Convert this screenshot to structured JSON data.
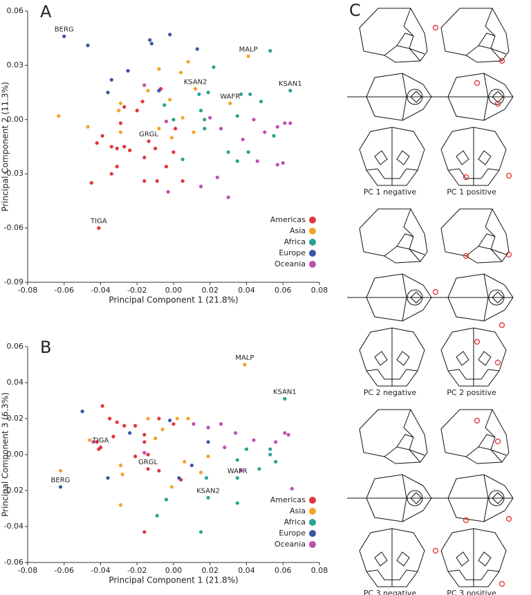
{
  "chart_data": [
    {
      "type": "scatter",
      "label": "A",
      "xlabel": "Principal Component 1 (21.8%)",
      "ylabel": "Principal Component 2 (11.3%)",
      "xlim": [
        -0.08,
        0.08
      ],
      "ylim": [
        -0.09,
        0.06
      ],
      "xticks": [
        -0.08,
        -0.06,
        -0.04,
        -0.02,
        {
          "value": 0,
          "label": "0.00"
        },
        0.02,
        0.04,
        0.06,
        0.08
      ],
      "yticks": [
        -0.09,
        -0.06,
        -0.03,
        {
          "value": 0,
          "label": "0.00"
        },
        0.03,
        0.06
      ],
      "legend": "lower right",
      "series": [
        {
          "name": "Americas",
          "color": "#e0363c",
          "x": [
            -0.041,
            -0.0136,
            -0.008,
            -0.007,
            -0.017,
            -0.027,
            -0.02,
            -0.029,
            -0.039,
            -0.042,
            -0.034,
            -0.031,
            -0.027,
            -0.024,
            -0.016,
            -0.01,
            -0.004,
            0.0,
            -0.034,
            -0.045,
            -0.016,
            -0.009,
            0.005,
            0.001,
            -0.031
          ],
          "y": [
            -0.06,
            -0.012,
            0.016,
            0.017,
            0.01,
            0.007,
            0.005,
            -0.002,
            -0.009,
            -0.013,
            -0.015,
            -0.016,
            -0.015,
            -0.017,
            -0.021,
            -0.016,
            -0.026,
            -0.018,
            -0.03,
            -0.035,
            -0.034,
            -0.034,
            -0.034,
            -0.005,
            -0.026
          ]
        },
        {
          "name": "Asia",
          "color": "#f5a227",
          "x": [
            -0.063,
            -0.047,
            -0.029,
            -0.03,
            -0.029,
            -0.014,
            -0.008,
            0.004,
            0.008,
            0.012,
            0.041,
            0.031,
            0.005,
            -0.001,
            -0.008,
            0.011,
            -0.002
          ],
          "y": [
            0.002,
            -0.004,
            0.009,
            0.005,
            -0.007,
            0.016,
            0.028,
            0.026,
            0.032,
            0.017,
            0.035,
            0.009,
            0.001,
            -0.01,
            -0.005,
            -0.007,
            0.011
          ]
        },
        {
          "name": "Africa",
          "color": "#27a394",
          "x": [
            0.053,
            0.064,
            0.022,
            0.019,
            0.014,
            -0.005,
            0.0,
            0.015,
            0.017,
            0.037,
            0.042,
            0.048,
            0.035,
            0.03,
            0.035,
            0.041,
            0.055,
            0.017,
            0.005
          ],
          "y": [
            0.038,
            0.016,
            0.029,
            0.015,
            0.014,
            0.008,
            0.0,
            0.005,
            -0.005,
            0.014,
            0.014,
            0.01,
            0.002,
            -0.018,
            -0.023,
            -0.018,
            -0.009,
            0.0,
            -0.022
          ]
        },
        {
          "name": "Europe",
          "color": "#3a56a6",
          "x": [
            -0.06,
            -0.047,
            -0.013,
            -0.012,
            -0.002,
            0.013,
            -0.025,
            -0.034,
            -0.036,
            -0.008
          ],
          "y": [
            0.046,
            0.041,
            0.044,
            0.042,
            0.047,
            0.039,
            0.027,
            0.022,
            0.015,
            0.016
          ]
        },
        {
          "name": "Oceania",
          "color": "#c04fae",
          "x": [
            -0.016,
            -0.004,
            0.02,
            0.026,
            0.044,
            0.05,
            0.057,
            0.061,
            0.064,
            0.038,
            0.046,
            0.057,
            0.06,
            0.024,
            0.03,
            -0.003,
            0.015
          ],
          "y": [
            0.019,
            -0.001,
            0.001,
            -0.005,
            0.0,
            -0.007,
            -0.004,
            -0.002,
            -0.002,
            -0.011,
            -0.023,
            -0.025,
            -0.024,
            -0.032,
            -0.043,
            -0.04,
            -0.037
          ]
        }
      ],
      "annotations": [
        {
          "text": "BERG",
          "x": -0.06,
          "y": 0.046
        },
        {
          "text": "MALP",
          "x": 0.041,
          "y": 0.035
        },
        {
          "text": "KSAN2",
          "x": 0.012,
          "y": 0.017
        },
        {
          "text": "KSAN1",
          "x": 0.064,
          "y": 0.016
        },
        {
          "text": "WAFR",
          "x": 0.031,
          "y": 0.009
        },
        {
          "text": "GRGL",
          "x": -0.0136,
          "y": -0.012
        },
        {
          "text": "TIGA",
          "x": -0.041,
          "y": -0.06
        }
      ]
    },
    {
      "type": "scatter",
      "label": "B",
      "xlabel": "Principal Component 1 (21.8%)",
      "ylabel": "Principal Component 3 (6.3%)",
      "xlim": [
        -0.08,
        0.08
      ],
      "ylim": [
        -0.06,
        0.06
      ],
      "xticks": [
        -0.08,
        -0.06,
        -0.04,
        -0.02,
        {
          "value": 0,
          "label": "0.00"
        },
        0.02,
        0.04,
        0.06,
        0.08
      ],
      "yticks": [
        -0.06,
        -0.04,
        -0.02,
        {
          "value": 0,
          "label": "0.00"
        },
        0.02,
        0.04,
        0.06
      ],
      "legend": "lower right",
      "series": [
        {
          "name": "Americas",
          "color": "#e0363c",
          "x": [
            -0.04,
            -0.041,
            -0.014,
            -0.039,
            -0.035,
            -0.031,
            -0.027,
            -0.021,
            -0.016,
            -0.016,
            -0.008,
            -0.014,
            -0.008,
            0.004,
            -0.016,
            -0.042,
            -0.033,
            -0.021,
            0.0
          ],
          "y": [
            0.004,
            0.003,
            -0.008,
            0.027,
            0.02,
            0.018,
            0.016,
            0.016,
            0.011,
            0.007,
            0.02,
            0.0,
            -0.009,
            -0.014,
            -0.043,
            0.007,
            0.01,
            -0.001,
            0.017
          ]
        },
        {
          "name": "Asia",
          "color": "#f5a227",
          "x": [
            -0.062,
            -0.046,
            -0.029,
            -0.029,
            -0.028,
            0.039,
            -0.006,
            -0.01,
            0.002,
            0.008,
            -0.001,
            0.006,
            0.015,
            0.019,
            -0.014
          ],
          "y": [
            -0.009,
            0.008,
            -0.028,
            -0.006,
            -0.011,
            0.05,
            0.014,
            0.009,
            0.02,
            0.02,
            -0.018,
            -0.004,
            -0.01,
            -0.001,
            0.02
          ]
        },
        {
          "name": "Africa",
          "color": "#27a394",
          "x": [
            0.061,
            0.019,
            0.018,
            0.035,
            0.035,
            0.047,
            0.053,
            0.056,
            -0.004,
            -0.009,
            0.015,
            0.053,
            0.035,
            0.04
          ],
          "y": [
            0.031,
            -0.024,
            -0.013,
            -0.013,
            -0.027,
            -0.008,
            0.0,
            -0.004,
            -0.025,
            -0.034,
            -0.043,
            0.003,
            -0.003,
            0.003
          ]
        },
        {
          "name": "Europe",
          "color": "#3a56a6",
          "x": [
            -0.062,
            -0.05,
            -0.024,
            -0.036,
            0.003,
            -0.002,
            0.01,
            0.019
          ],
          "y": [
            -0.018,
            0.024,
            0.012,
            -0.013,
            -0.013,
            0.019,
            -0.006,
            0.007
          ]
        },
        {
          "name": "Oceania",
          "color": "#c04fae",
          "x": [
            -0.044,
            -0.016,
            0.011,
            0.026,
            0.034,
            0.044,
            0.056,
            0.061,
            0.063,
            0.065,
            0.037,
            0.019,
            0.028
          ],
          "y": [
            0.007,
            0.001,
            0.017,
            0.017,
            0.012,
            0.008,
            0.007,
            0.012,
            0.011,
            -0.019,
            -0.009,
            0.015,
            0.004
          ]
        }
      ],
      "annotations": [
        {
          "text": "MALP",
          "x": 0.039,
          "y": 0.05
        },
        {
          "text": "KSAN1",
          "x": 0.061,
          "y": 0.031
        },
        {
          "text": "TIGA",
          "x": -0.04,
          "y": 0.004
        },
        {
          "text": "GRGL",
          "x": -0.014,
          "y": -0.008
        },
        {
          "text": "BERG",
          "x": -0.062,
          "y": -0.018
        },
        {
          "text": "WAFR",
          "x": 0.035,
          "y": -0.013
        },
        {
          "text": "KSAN2",
          "x": 0.019,
          "y": -0.024
        }
      ]
    }
  ],
  "panel_c": {
    "label": "C",
    "captions": [
      [
        "PC 1 negative",
        "PC 1 positive"
      ],
      [
        "PC 2 negative",
        "PC 2 positive"
      ],
      [
        "PC 3 negative",
        "PC 3 positive"
      ]
    ]
  }
}
